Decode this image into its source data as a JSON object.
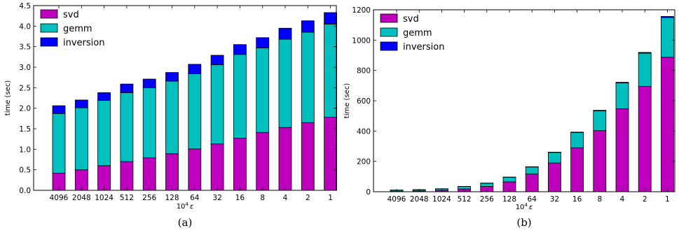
{
  "chart_data": [
    {
      "type": "bar",
      "stacked": true,
      "panel_label": "(a)",
      "categories": [
        "4096",
        "2048",
        "1024",
        "512",
        "256",
        "128",
        "64",
        "32",
        "16",
        "8",
        "4",
        "2",
        "1"
      ],
      "series": [
        {
          "name": "svd",
          "color": "#bf00bf",
          "values": [
            0.42,
            0.5,
            0.6,
            0.7,
            0.79,
            0.89,
            1.01,
            1.13,
            1.27,
            1.41,
            1.53,
            1.65,
            1.78
          ]
        },
        {
          "name": "gemm",
          "color": "#00bfbf",
          "values": [
            1.45,
            1.51,
            1.59,
            1.68,
            1.71,
            1.77,
            1.83,
            1.93,
            2.04,
            2.06,
            2.15,
            2.2,
            2.27
          ]
        },
        {
          "name": "inversion",
          "color": "#0000ff",
          "values": [
            0.19,
            0.19,
            0.19,
            0.21,
            0.21,
            0.21,
            0.23,
            0.23,
            0.24,
            0.25,
            0.27,
            0.28,
            0.28
          ]
        }
      ],
      "xlabel": "10^4 ε",
      "xlabel_base": "10",
      "xlabel_exp": "4",
      "xlabel_symbol": "ε",
      "ylabel": "time (sec)",
      "ylim": [
        0,
        4.5
      ],
      "yticks": [
        "0.0",
        "0.5",
        "1.0",
        "1.5",
        "2.0",
        "2.5",
        "3.0",
        "3.5",
        "4.0",
        "4.5"
      ],
      "legend_position": "top-left",
      "grid": false
    },
    {
      "type": "bar",
      "stacked": true,
      "panel_label": "(b)",
      "categories": [
        "4096",
        "2048",
        "1024",
        "512",
        "256",
        "128",
        "64",
        "32",
        "16",
        "8",
        "4",
        "2",
        "1"
      ],
      "series": [
        {
          "name": "svd",
          "color": "#bf00bf",
          "values": [
            3,
            5,
            9,
            18,
            35,
            65,
            117,
            190,
            290,
            403,
            547,
            695,
            887
          ]
        },
        {
          "name": "gemm",
          "color": "#00bfbf",
          "values": [
            7,
            8,
            10,
            16,
            21,
            30,
            46,
            69,
            100,
            131,
            171,
            219,
            262
          ]
        },
        {
          "name": "inversion",
          "color": "#0000ff",
          "values": [
            1,
            1,
            1,
            1,
            1,
            2,
            2,
            2,
            3,
            3,
            4,
            5,
            7
          ]
        }
      ],
      "xlabel": "10^4 ε",
      "xlabel_base": "10",
      "xlabel_exp": "4",
      "xlabel_symbol": "ε",
      "ylabel": "time (sec)",
      "ylim": [
        0,
        1200
      ],
      "yticks": [
        "0",
        "200",
        "400",
        "600",
        "800",
        "1000",
        "1200"
      ],
      "legend_position": "top-left",
      "grid": false
    }
  ]
}
